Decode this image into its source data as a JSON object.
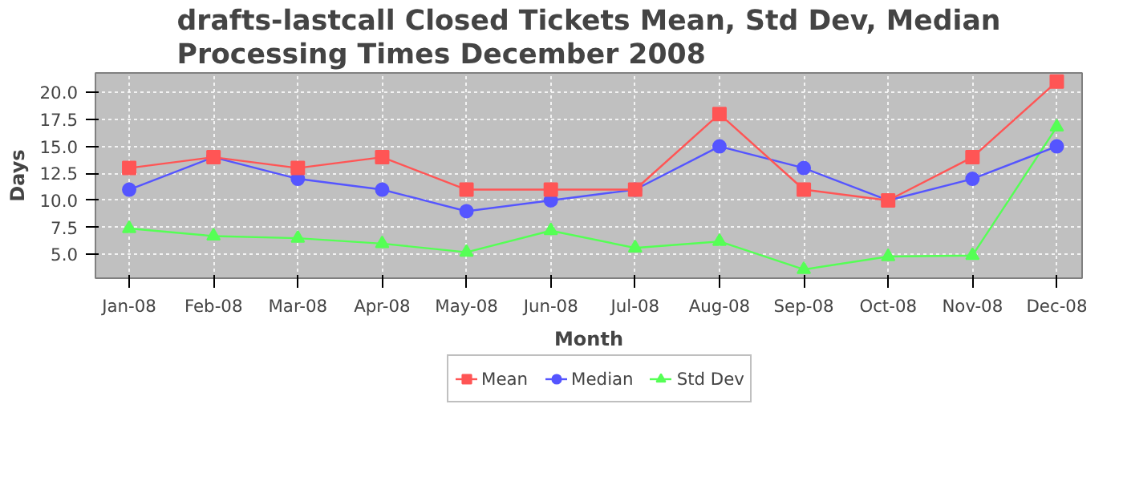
{
  "chart_data": {
    "type": "line",
    "title": "drafts-lastcall Closed Tickets Mean, Std Dev, Median Processing Times December 2008",
    "xlabel": "Month",
    "ylabel": "Days",
    "categories": [
      "Jan-08",
      "Feb-08",
      "Mar-08",
      "Apr-08",
      "May-08",
      "Jun-08",
      "Jul-08",
      "Aug-08",
      "Sep-08",
      "Oct-08",
      "Nov-08",
      "Dec-08"
    ],
    "ylim": [
      2.8,
      21.8
    ],
    "yticks": [
      {
        "value": 5,
        "label": "5.0"
      },
      {
        "value": 7.5,
        "label": "7.5"
      },
      {
        "value": 10,
        "label": "10.0"
      },
      {
        "value": 12.5,
        "label": "12.5"
      },
      {
        "value": 15,
        "label": "15.0"
      },
      {
        "value": 17.5,
        "label": "17.5"
      },
      {
        "value": 20,
        "label": "20.0"
      }
    ],
    "grid": true,
    "legend": "bottom",
    "line_style": "solid",
    "series": [
      {
        "name": "Mean",
        "color": "#ff5555",
        "marker": "square",
        "values": [
          13,
          14,
          13,
          14,
          11,
          11,
          11,
          18,
          11,
          10,
          14,
          21
        ]
      },
      {
        "name": "Median",
        "color": "#5555ff",
        "marker": "circle",
        "values": [
          11,
          14,
          12,
          11,
          9,
          10,
          11,
          15,
          13,
          10,
          12,
          15
        ]
      },
      {
        "name": "Std Dev",
        "color": "#55ff55",
        "marker": "triangle",
        "values": [
          7.4,
          6.7,
          6.5,
          6.0,
          5.2,
          7.2,
          5.6,
          6.2,
          3.6,
          4.8,
          4.9,
          16.8
        ]
      }
    ]
  }
}
